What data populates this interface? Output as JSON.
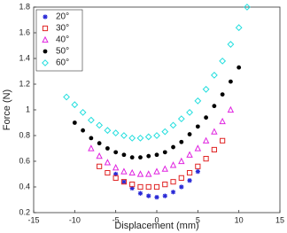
{
  "chart_data": {
    "type": "scatter",
    "xlabel": "Displacement (mm)",
    "ylabel": "Force (N)",
    "xlim": [
      -15,
      15
    ],
    "xticks": [
      -15,
      -10,
      -5,
      0,
      5,
      10,
      15
    ],
    "ylim": [
      0.2,
      1.8
    ],
    "yticks": [
      0.2,
      0.4,
      0.6,
      0.8,
      1,
      1.2,
      1.4,
      1.6,
      1.8
    ],
    "legend": "upper left",
    "series": [
      {
        "name": "20°",
        "color": "#2a2ad6",
        "marker": "star",
        "x": [
          -5,
          -4,
          -3,
          -2,
          -1,
          0,
          1,
          2,
          3,
          4,
          5
        ],
        "values": [
          0.5,
          0.44,
          0.39,
          0.35,
          0.33,
          0.32,
          0.33,
          0.36,
          0.4,
          0.45,
          0.52
        ]
      },
      {
        "name": "30°",
        "color": "#e02424",
        "marker": "square",
        "x": [
          -7,
          -6,
          -5,
          -4,
          -3,
          -2,
          -1,
          0,
          1,
          2,
          3,
          4,
          5,
          6,
          7,
          8
        ],
        "values": [
          0.56,
          0.51,
          0.47,
          0.44,
          0.42,
          0.4,
          0.4,
          0.4,
          0.42,
          0.44,
          0.47,
          0.51,
          0.56,
          0.62,
          0.69,
          0.76
        ]
      },
      {
        "name": "40°",
        "color": "#e024e0",
        "marker": "triangle",
        "x": [
          -8,
          -7,
          -6,
          -5,
          -4,
          -3,
          -2,
          -1,
          0,
          1,
          2,
          3,
          4,
          5,
          6,
          7,
          8,
          9
        ],
        "values": [
          0.7,
          0.64,
          0.59,
          0.55,
          0.52,
          0.51,
          0.5,
          0.5,
          0.52,
          0.54,
          0.57,
          0.6,
          0.65,
          0.7,
          0.76,
          0.83,
          0.91,
          1.0
        ]
      },
      {
        "name": "50°",
        "color": "#000000",
        "marker": "circle",
        "x": [
          -10,
          -9,
          -8,
          -7,
          -6,
          -5,
          -4,
          -3,
          -2,
          -1,
          0,
          1,
          2,
          3,
          4,
          5,
          6,
          7,
          8,
          9,
          10
        ],
        "values": [
          0.9,
          0.84,
          0.78,
          0.74,
          0.7,
          0.67,
          0.65,
          0.63,
          0.63,
          0.64,
          0.65,
          0.67,
          0.71,
          0.75,
          0.81,
          0.87,
          0.94,
          1.03,
          1.12,
          1.22,
          1.33
        ]
      },
      {
        "name": "60°",
        "color": "#22dede",
        "marker": "diamond",
        "x": [
          -11,
          -10,
          -9,
          -8,
          -7,
          -6,
          -5,
          -4,
          -3,
          -2,
          -1,
          0,
          1,
          2,
          3,
          4,
          5,
          6,
          7,
          8,
          9,
          10,
          11
        ],
        "values": [
          1.1,
          1.04,
          0.98,
          0.92,
          0.88,
          0.84,
          0.82,
          0.8,
          0.78,
          0.78,
          0.79,
          0.8,
          0.83,
          0.88,
          0.93,
          0.98,
          1.07,
          1.16,
          1.27,
          1.38,
          1.51,
          1.64,
          1.8
        ]
      }
    ]
  }
}
